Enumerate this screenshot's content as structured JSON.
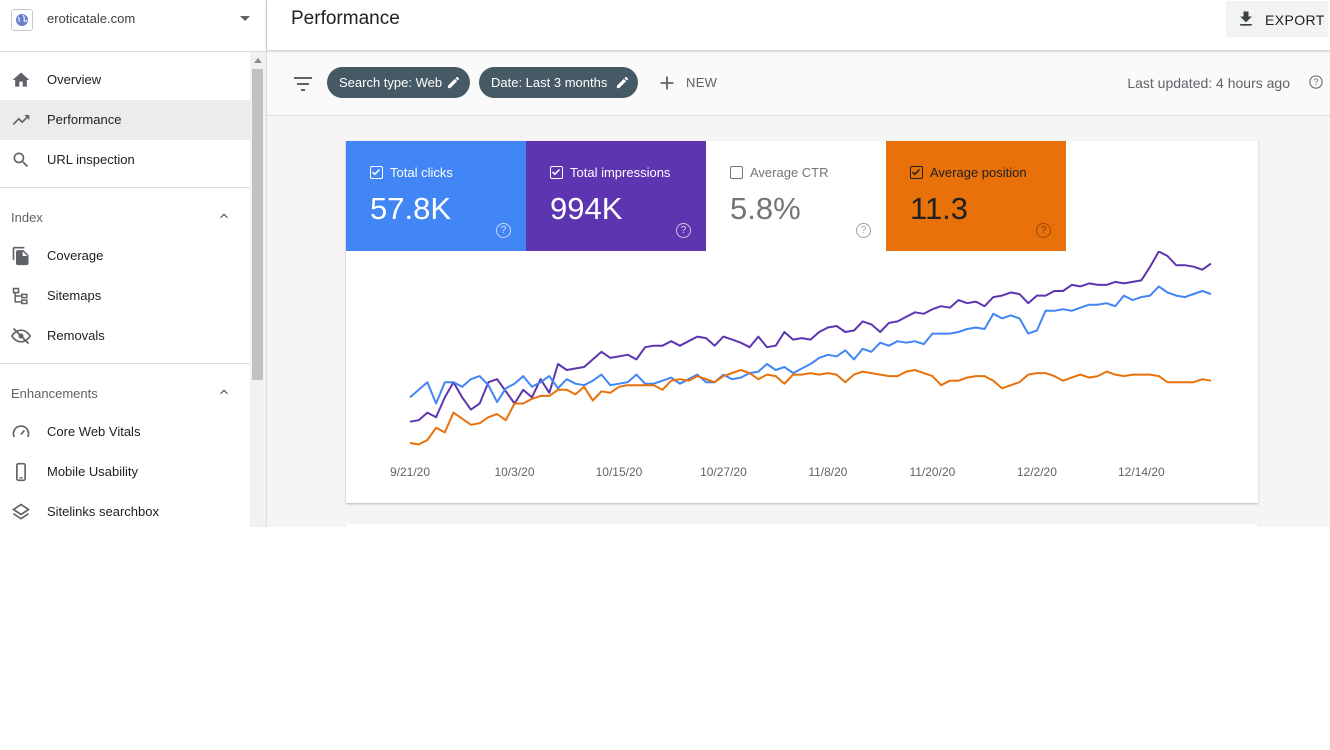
{
  "sidebar": {
    "property": {
      "name": "eroticatale.com",
      "icon": "globe-icon"
    },
    "nav": [
      {
        "label": "Overview",
        "icon": "home-icon"
      },
      {
        "label": "Performance",
        "icon": "trending-up-icon",
        "active": true
      },
      {
        "label": "URL inspection",
        "icon": "search-icon"
      }
    ],
    "index_section": {
      "title": "Index",
      "items": [
        {
          "label": "Coverage",
          "icon": "file-copy-icon"
        },
        {
          "label": "Sitemaps",
          "icon": "sitemap-icon"
        },
        {
          "label": "Removals",
          "icon": "eye-off-icon"
        }
      ]
    },
    "enhancements_section": {
      "title": "Enhancements",
      "items": [
        {
          "label": "Core Web Vitals",
          "icon": "speed-gauge-icon"
        },
        {
          "label": "Mobile Usability",
          "icon": "phone-icon"
        },
        {
          "label": "Sitelinks searchbox",
          "icon": "layers-icon"
        }
      ]
    }
  },
  "header": {
    "title": "Performance",
    "export_label": "EXPORT"
  },
  "filters": {
    "chips": [
      {
        "label": "Search type: Web"
      },
      {
        "label": "Date: Last 3 months"
      }
    ],
    "new_label": "NEW",
    "last_updated": "Last updated: 4 hours ago"
  },
  "metrics": [
    {
      "label": "Total clicks",
      "value": "57.8K",
      "checked": true,
      "color": "#4285f4"
    },
    {
      "label": "Total impressions",
      "value": "994K",
      "checked": true,
      "color": "#5e35b1"
    },
    {
      "label": "Average CTR",
      "value": "5.8%",
      "checked": false,
      "color": "#00897b"
    },
    {
      "label": "Average position",
      "value": "11.3",
      "checked": true,
      "color": "#e8710a"
    }
  ],
  "chart_data": {
    "type": "line",
    "x_ticks": [
      "9/21/20",
      "10/3/20",
      "10/15/20",
      "10/27/20",
      "11/8/20",
      "11/20/20",
      "12/2/20",
      "12/14/20"
    ],
    "y_axis_shown": false,
    "series": [
      {
        "name": "Total impressions",
        "color": "#5e35b1",
        "points": [
          [
            0,
            0.14
          ],
          [
            1,
            0.15
          ],
          [
            2,
            0.2
          ],
          [
            3,
            0.17
          ],
          [
            4,
            0.3
          ],
          [
            5,
            0.4
          ],
          [
            6,
            0.3
          ],
          [
            7,
            0.22
          ],
          [
            8,
            0.26
          ],
          [
            9,
            0.4
          ],
          [
            10,
            0.42
          ],
          [
            11,
            0.34
          ],
          [
            12,
            0.26
          ],
          [
            13,
            0.35
          ],
          [
            14,
            0.3
          ],
          [
            15,
            0.42
          ],
          [
            16,
            0.33
          ],
          [
            17,
            0.52
          ],
          [
            18,
            0.48
          ],
          [
            19,
            0.49
          ],
          [
            20,
            0.5
          ],
          [
            21,
            0.55
          ],
          [
            22,
            0.6
          ],
          [
            23,
            0.56
          ],
          [
            24,
            0.57
          ],
          [
            25,
            0.58
          ],
          [
            26,
            0.55
          ],
          [
            27,
            0.63
          ],
          [
            28,
            0.64
          ],
          [
            29,
            0.64
          ],
          [
            30,
            0.67
          ],
          [
            31,
            0.64
          ],
          [
            32,
            0.67
          ],
          [
            33,
            0.7
          ],
          [
            34,
            0.69
          ],
          [
            35,
            0.64
          ],
          [
            36,
            0.7
          ],
          [
            37,
            0.68
          ],
          [
            38,
            0.66
          ],
          [
            39,
            0.63
          ],
          [
            40,
            0.7
          ],
          [
            41,
            0.63
          ],
          [
            42,
            0.64
          ],
          [
            43,
            0.73
          ],
          [
            44,
            0.68
          ],
          [
            45,
            0.69
          ],
          [
            46,
            0.68
          ],
          [
            47,
            0.73
          ],
          [
            48,
            0.76
          ],
          [
            49,
            0.77
          ],
          [
            50,
            0.73
          ],
          [
            51,
            0.74
          ],
          [
            52,
            0.8
          ],
          [
            53,
            0.78
          ],
          [
            54,
            0.73
          ],
          [
            55,
            0.79
          ],
          [
            56,
            0.8
          ],
          [
            57,
            0.83
          ],
          [
            58,
            0.86
          ],
          [
            59,
            0.85
          ],
          [
            60,
            0.88
          ],
          [
            61,
            0.9
          ],
          [
            62,
            0.89
          ],
          [
            63,
            0.94
          ],
          [
            64,
            0.92
          ],
          [
            65,
            0.93
          ],
          [
            66,
            0.9
          ],
          [
            67,
            0.96
          ],
          [
            68,
            0.97
          ],
          [
            69,
            0.99
          ],
          [
            70,
            0.98
          ],
          [
            71,
            0.92
          ],
          [
            72,
            0.97
          ],
          [
            73,
            0.97
          ],
          [
            74,
            1.0
          ],
          [
            75,
            1.0
          ],
          [
            76,
            1.04
          ],
          [
            77,
            1.03
          ],
          [
            78,
            1.05
          ],
          [
            79,
            1.04
          ],
          [
            80,
            1.04
          ],
          [
            81,
            1.06
          ],
          [
            82,
            1.05
          ],
          [
            83,
            1.06
          ],
          [
            84,
            1.07
          ],
          [
            85,
            1.16
          ],
          [
            86,
            1.26
          ],
          [
            87,
            1.23
          ],
          [
            88,
            1.17
          ],
          [
            89,
            1.17
          ],
          [
            90,
            1.16
          ],
          [
            91,
            1.14
          ],
          [
            92,
            1.18
          ]
        ]
      },
      {
        "name": "Total clicks",
        "color": "#4285f4",
        "points": [
          [
            0,
            0.3
          ],
          [
            1,
            0.35
          ],
          [
            2,
            0.4
          ],
          [
            3,
            0.26
          ],
          [
            4,
            0.4
          ],
          [
            5,
            0.4
          ],
          [
            6,
            0.37
          ],
          [
            7,
            0.42
          ],
          [
            8,
            0.44
          ],
          [
            9,
            0.38
          ],
          [
            10,
            0.27
          ],
          [
            11,
            0.36
          ],
          [
            12,
            0.39
          ],
          [
            13,
            0.44
          ],
          [
            14,
            0.37
          ],
          [
            15,
            0.4
          ],
          [
            16,
            0.44
          ],
          [
            17,
            0.36
          ],
          [
            18,
            0.42
          ],
          [
            19,
            0.39
          ],
          [
            20,
            0.38
          ],
          [
            21,
            0.41
          ],
          [
            22,
            0.45
          ],
          [
            23,
            0.38
          ],
          [
            24,
            0.39
          ],
          [
            25,
            0.4
          ],
          [
            26,
            0.45
          ],
          [
            27,
            0.39
          ],
          [
            28,
            0.39
          ],
          [
            29,
            0.41
          ],
          [
            30,
            0.43
          ],
          [
            31,
            0.39
          ],
          [
            32,
            0.42
          ],
          [
            33,
            0.45
          ],
          [
            34,
            0.4
          ],
          [
            35,
            0.4
          ],
          [
            36,
            0.45
          ],
          [
            37,
            0.42
          ],
          [
            38,
            0.43
          ],
          [
            39,
            0.46
          ],
          [
            40,
            0.47
          ],
          [
            41,
            0.52
          ],
          [
            42,
            0.48
          ],
          [
            43,
            0.5
          ],
          [
            44,
            0.46
          ],
          [
            45,
            0.49
          ],
          [
            46,
            0.52
          ],
          [
            47,
            0.56
          ],
          [
            48,
            0.58
          ],
          [
            49,
            0.57
          ],
          [
            50,
            0.61
          ],
          [
            51,
            0.55
          ],
          [
            52,
            0.62
          ],
          [
            53,
            0.6
          ],
          [
            54,
            0.66
          ],
          [
            55,
            0.64
          ],
          [
            56,
            0.67
          ],
          [
            57,
            0.66
          ],
          [
            58,
            0.67
          ],
          [
            59,
            0.65
          ],
          [
            60,
            0.72
          ],
          [
            61,
            0.72
          ],
          [
            62,
            0.72
          ],
          [
            63,
            0.73
          ],
          [
            64,
            0.75
          ],
          [
            65,
            0.76
          ],
          [
            66,
            0.75
          ],
          [
            67,
            0.85
          ],
          [
            68,
            0.82
          ],
          [
            69,
            0.84
          ],
          [
            70,
            0.82
          ],
          [
            71,
            0.72
          ],
          [
            72,
            0.74
          ],
          [
            73,
            0.87
          ],
          [
            74,
            0.87
          ],
          [
            75,
            0.88
          ],
          [
            76,
            0.87
          ],
          [
            77,
            0.89
          ],
          [
            78,
            0.91
          ],
          [
            79,
            0.91
          ],
          [
            80,
            0.92
          ],
          [
            81,
            0.9
          ],
          [
            82,
            0.97
          ],
          [
            83,
            0.94
          ],
          [
            84,
            0.96
          ],
          [
            85,
            0.97
          ],
          [
            86,
            1.03
          ],
          [
            87,
            0.99
          ],
          [
            88,
            0.97
          ],
          [
            89,
            0.96
          ],
          [
            90,
            0.98
          ],
          [
            91,
            1.0
          ],
          [
            92,
            0.98
          ]
        ]
      },
      {
        "name": "Average position",
        "color": "#e8710a",
        "points": [
          [
            0,
            0.0
          ],
          [
            1,
            -0.01
          ],
          [
            2,
            0.02
          ],
          [
            3,
            0.1
          ],
          [
            4,
            0.07
          ],
          [
            5,
            0.2
          ],
          [
            6,
            0.16
          ],
          [
            7,
            0.12
          ],
          [
            8,
            0.13
          ],
          [
            9,
            0.17
          ],
          [
            10,
            0.19
          ],
          [
            11,
            0.15
          ],
          [
            12,
            0.26
          ],
          [
            13,
            0.26
          ],
          [
            14,
            0.29
          ],
          [
            15,
            0.31
          ],
          [
            16,
            0.31
          ],
          [
            17,
            0.35
          ],
          [
            18,
            0.35
          ],
          [
            19,
            0.32
          ],
          [
            20,
            0.37
          ],
          [
            21,
            0.28
          ],
          [
            22,
            0.34
          ],
          [
            23,
            0.33
          ],
          [
            24,
            0.37
          ],
          [
            25,
            0.38
          ],
          [
            26,
            0.38
          ],
          [
            27,
            0.38
          ],
          [
            28,
            0.38
          ],
          [
            29,
            0.35
          ],
          [
            30,
            0.41
          ],
          [
            31,
            0.42
          ],
          [
            32,
            0.41
          ],
          [
            33,
            0.44
          ],
          [
            34,
            0.42
          ],
          [
            35,
            0.4
          ],
          [
            36,
            0.44
          ],
          [
            37,
            0.46
          ],
          [
            38,
            0.48
          ],
          [
            39,
            0.46
          ],
          [
            40,
            0.42
          ],
          [
            41,
            0.45
          ],
          [
            42,
            0.44
          ],
          [
            43,
            0.39
          ],
          [
            44,
            0.45
          ],
          [
            45,
            0.45
          ],
          [
            46,
            0.46
          ],
          [
            47,
            0.45
          ],
          [
            48,
            0.46
          ],
          [
            49,
            0.45
          ],
          [
            50,
            0.4
          ],
          [
            51,
            0.45
          ],
          [
            52,
            0.47
          ],
          [
            53,
            0.46
          ],
          [
            54,
            0.45
          ],
          [
            55,
            0.44
          ],
          [
            56,
            0.44
          ],
          [
            57,
            0.47
          ],
          [
            58,
            0.48
          ],
          [
            59,
            0.46
          ],
          [
            60,
            0.44
          ],
          [
            61,
            0.38
          ],
          [
            62,
            0.41
          ],
          [
            63,
            0.41
          ],
          [
            64,
            0.43
          ],
          [
            65,
            0.44
          ],
          [
            66,
            0.44
          ],
          [
            67,
            0.41
          ],
          [
            68,
            0.36
          ],
          [
            69,
            0.38
          ],
          [
            70,
            0.4
          ],
          [
            71,
            0.45
          ],
          [
            72,
            0.46
          ],
          [
            73,
            0.46
          ],
          [
            74,
            0.44
          ],
          [
            75,
            0.41
          ],
          [
            76,
            0.43
          ],
          [
            77,
            0.45
          ],
          [
            78,
            0.43
          ],
          [
            79,
            0.44
          ],
          [
            80,
            0.47
          ],
          [
            81,
            0.45
          ],
          [
            82,
            0.44
          ],
          [
            83,
            0.45
          ],
          [
            84,
            0.45
          ],
          [
            85,
            0.45
          ],
          [
            86,
            0.44
          ],
          [
            87,
            0.4
          ],
          [
            88,
            0.4
          ],
          [
            89,
            0.4
          ],
          [
            90,
            0.4
          ],
          [
            91,
            0.42
          ],
          [
            92,
            0.41
          ]
        ]
      }
    ]
  }
}
